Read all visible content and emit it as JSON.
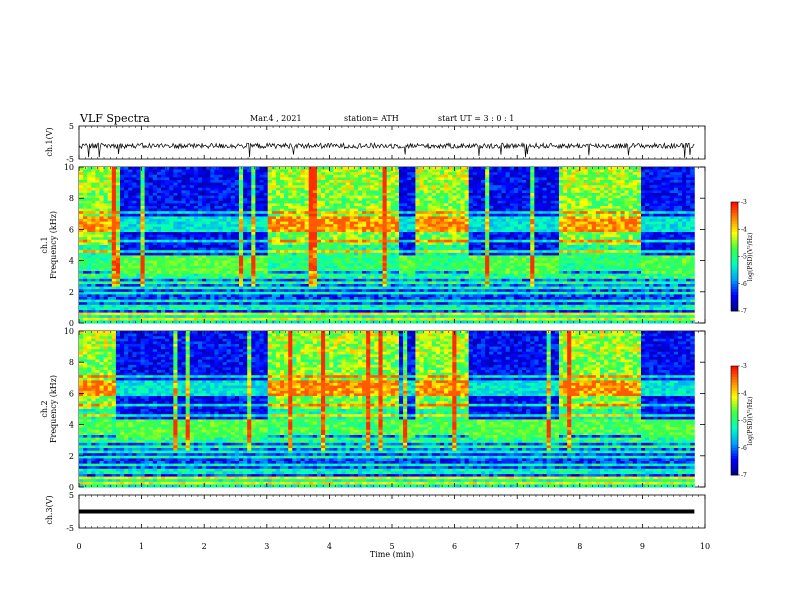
{
  "header": {
    "title": "VLF Spectra",
    "date": "Mar.4 , 2021",
    "station": "station= ATH",
    "start": "start UT = 3 : 0 : 1"
  },
  "chart_data": [
    {
      "type": "line",
      "panel": "ch1-waveform",
      "ylabel": "ch.1(V)",
      "yticks": [
        "5",
        "-5"
      ],
      "ylim": [
        -5,
        5
      ],
      "xlim": [
        0,
        10
      ],
      "description_level": "noise around -1 V with sparse negative spikes"
    },
    {
      "type": "heatmap",
      "panel": "ch1-spectrogram",
      "ylabel": "ch.1",
      "ylabel2": "Frequency (kHz)",
      "yticks": [
        "0",
        "2",
        "4",
        "6",
        "8",
        "10"
      ],
      "ylim": [
        0,
        10
      ],
      "xlim": [
        0,
        9.83
      ],
      "colorbar": {
        "label": "log(PSD)(V²/Hz)",
        "ticks": [
          "-3",
          "-4",
          "-5",
          "-6",
          "-7"
        ],
        "range": [
          -7,
          -3
        ]
      },
      "quiet_intervals_min": [
        [
          0.6,
          3.0
        ],
        [
          5.1,
          5.4
        ],
        [
          6.25,
          7.7
        ],
        [
          8.95,
          9.83
        ]
      ]
    },
    {
      "type": "heatmap",
      "panel": "ch2-spectrogram",
      "ylabel": "ch.2",
      "ylabel2": "Frequency (kHz)",
      "yticks": [
        "0",
        "2",
        "4",
        "6",
        "8",
        "10"
      ],
      "ylim": [
        0,
        10
      ],
      "xlim": [
        0,
        9.83
      ],
      "colorbar": {
        "label": "log(PSD)(V²/Hz)",
        "ticks": [
          "-3",
          "-4",
          "-5",
          "-6",
          "-7"
        ],
        "range": [
          -7,
          -3
        ]
      },
      "quiet_intervals_min": [
        [
          0.6,
          3.0
        ],
        [
          5.1,
          5.4
        ],
        [
          6.25,
          7.7
        ],
        [
          8.95,
          9.83
        ]
      ]
    },
    {
      "type": "line",
      "panel": "ch3-waveform",
      "ylabel": "ch.3(V)",
      "yticks": [
        "5",
        "-5"
      ],
      "ylim": [
        -5,
        5
      ],
      "xlim": [
        0,
        10
      ],
      "level": 0
    }
  ],
  "xaxis": {
    "label": "Time (min)",
    "ticks": [
      "0",
      "1",
      "2",
      "3",
      "4",
      "5",
      "6",
      "7",
      "8",
      "9",
      "10"
    ]
  },
  "colors": {
    "trace": "#000000",
    "colormap": [
      "#000080",
      "#0000ff",
      "#00a0ff",
      "#00ffc0",
      "#40ff40",
      "#ffff00",
      "#ff8000",
      "#ff0000"
    ]
  }
}
